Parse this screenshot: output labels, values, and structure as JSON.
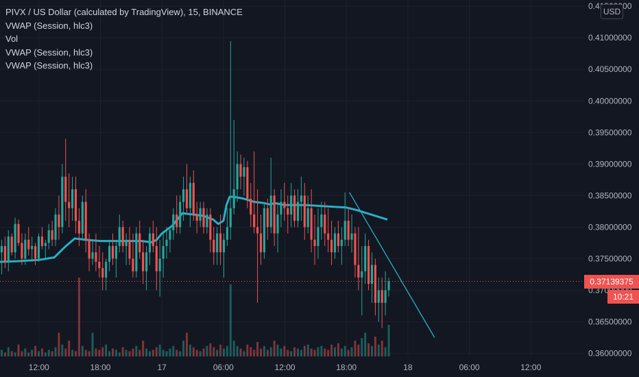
{
  "legend": {
    "title": "PIVX / US Dollar (calculated by TradingView), 15, BINANCE",
    "lines": [
      "VWAP (Session, hlc3)",
      "Vol",
      "VWAP (Session, hlc3)",
      "VWAP (Session, hlc3)"
    ]
  },
  "currency_button": "USD",
  "last_price": "0.37139375",
  "countdown": "10:21",
  "colors": {
    "background": "#131722",
    "up": "#26a69a",
    "down": "#ef5350",
    "vwap": "#2ab0c5",
    "trendline": "#2ab0c5",
    "text": "#b2b5be",
    "price_tag": "#ef5350"
  },
  "chart_data": {
    "type": "candlestick",
    "symbol": "PIVX / US Dollar (calculated by TradingView)",
    "interval": "15",
    "exchange": "BINANCE",
    "y_ticks": [
      "0.41500000",
      "0.41000000",
      "0.40500000",
      "0.40000000",
      "0.39500000",
      "0.39000000",
      "0.38500000",
      "0.38000000",
      "0.37500000",
      "0.37000000",
      "0.36500000",
      "0.36000000"
    ],
    "y_tick_values": [
      0.415,
      0.41,
      0.405,
      0.4,
      0.395,
      0.39,
      0.385,
      0.38,
      0.375,
      0.37,
      0.365,
      0.36
    ],
    "ylim": [
      0.3595,
      0.416
    ],
    "x_ticks": [
      "12:00",
      "18:00",
      "17",
      "06:00",
      "12:00",
      "18:00",
      "18",
      "06:00",
      "12:00"
    ],
    "x_tick_hours": [
      12,
      18,
      24,
      30,
      36,
      42,
      48,
      54,
      60
    ],
    "xlim_hours": [
      8.2,
      65.2
    ],
    "last_price": 0.37139375,
    "series": [
      {
        "name": "VWAP (Session, hlc3)",
        "type": "line",
        "x_hours": [
          8.2,
          10,
          12,
          13.5,
          14.5,
          15.5,
          16.5,
          18,
          20,
          22,
          23,
          23.5,
          24,
          25,
          26,
          27,
          28,
          29,
          29.5,
          30,
          30.3,
          30.6,
          31,
          32,
          33,
          34,
          34.5,
          35,
          36,
          38,
          40,
          42,
          43,
          44,
          45,
          46
        ],
        "values": [
          0.3745,
          0.3746,
          0.3748,
          0.3752,
          0.3768,
          0.3782,
          0.378,
          0.3778,
          0.3778,
          0.3778,
          0.3776,
          0.378,
          0.379,
          0.3802,
          0.3822,
          0.382,
          0.3818,
          0.3812,
          0.3805,
          0.381,
          0.3835,
          0.3848,
          0.3848,
          0.3845,
          0.384,
          0.3838,
          0.3836,
          0.3838,
          0.3835,
          0.3835,
          0.3833,
          0.3831,
          0.3827,
          0.3822,
          0.3817,
          0.3812
        ]
      },
      {
        "name": "trend line",
        "type": "line",
        "x_hours": [
          42.3,
          50.6
        ],
        "values": [
          0.3855,
          0.3625
        ]
      }
    ],
    "ohlc": [
      [
        0.376,
        0.378,
        0.3725,
        0.377
      ],
      [
        0.377,
        0.3785,
        0.3735,
        0.3745
      ],
      [
        0.3745,
        0.3795,
        0.373,
        0.3785
      ],
      [
        0.3785,
        0.379,
        0.3755,
        0.376
      ],
      [
        0.376,
        0.3815,
        0.375,
        0.3805
      ],
      [
        0.3805,
        0.3812,
        0.377,
        0.3775
      ],
      [
        0.3775,
        0.379,
        0.374,
        0.375
      ],
      [
        0.375,
        0.379,
        0.374,
        0.378
      ],
      [
        0.378,
        0.38,
        0.3755,
        0.3765
      ],
      [
        0.3765,
        0.3785,
        0.3745,
        0.377
      ],
      [
        0.377,
        0.3775,
        0.374,
        0.375
      ],
      [
        0.375,
        0.379,
        0.3745,
        0.3785
      ],
      [
        0.3785,
        0.38,
        0.3765,
        0.377
      ],
      [
        0.377,
        0.378,
        0.375,
        0.3775
      ],
      [
        0.3775,
        0.3805,
        0.3765,
        0.3795
      ],
      [
        0.3795,
        0.381,
        0.377,
        0.378
      ],
      [
        0.378,
        0.383,
        0.377,
        0.382
      ],
      [
        0.382,
        0.385,
        0.378,
        0.38
      ],
      [
        0.38,
        0.39,
        0.379,
        0.388
      ],
      [
        0.388,
        0.394,
        0.381,
        0.384
      ],
      [
        0.384,
        0.3885,
        0.38,
        0.383
      ],
      [
        0.383,
        0.388,
        0.381,
        0.386
      ],
      [
        0.386,
        0.388,
        0.379,
        0.381
      ],
      [
        0.381,
        0.383,
        0.377,
        0.379
      ],
      [
        0.379,
        0.385,
        0.378,
        0.384
      ],
      [
        0.384,
        0.386,
        0.376,
        0.378
      ],
      [
        0.378,
        0.379,
        0.373,
        0.375
      ],
      [
        0.375,
        0.378,
        0.374,
        0.376
      ],
      [
        0.376,
        0.379,
        0.373,
        0.3745
      ],
      [
        0.3745,
        0.377,
        0.372,
        0.3735
      ],
      [
        0.3735,
        0.376,
        0.37,
        0.372
      ],
      [
        0.372,
        0.375,
        0.37,
        0.3745
      ],
      [
        0.3745,
        0.378,
        0.373,
        0.377
      ],
      [
        0.377,
        0.379,
        0.374,
        0.375
      ],
      [
        0.375,
        0.378,
        0.372,
        0.377
      ],
      [
        0.377,
        0.382,
        0.376,
        0.38
      ],
      [
        0.38,
        0.381,
        0.376,
        0.377
      ],
      [
        0.377,
        0.379,
        0.374,
        0.378
      ],
      [
        0.378,
        0.38,
        0.374,
        0.375
      ],
      [
        0.375,
        0.379,
        0.372,
        0.373
      ],
      [
        0.373,
        0.38,
        0.372,
        0.379
      ],
      [
        0.379,
        0.381,
        0.375,
        0.376
      ],
      [
        0.376,
        0.378,
        0.371,
        0.373
      ],
      [
        0.373,
        0.377,
        0.37,
        0.376
      ],
      [
        0.376,
        0.38,
        0.374,
        0.379
      ],
      [
        0.379,
        0.381,
        0.376,
        0.377
      ],
      [
        0.377,
        0.38,
        0.37,
        0.373
      ],
      [
        0.373,
        0.378,
        0.369,
        0.375
      ],
      [
        0.375,
        0.379,
        0.372,
        0.377
      ],
      [
        0.377,
        0.38,
        0.375,
        0.378
      ],
      [
        0.378,
        0.38,
        0.376,
        0.3795
      ],
      [
        0.3795,
        0.383,
        0.378,
        0.382
      ],
      [
        0.382,
        0.385,
        0.379,
        0.38
      ],
      [
        0.38,
        0.385,
        0.379,
        0.384
      ],
      [
        0.384,
        0.388,
        0.381,
        0.386
      ],
      [
        0.386,
        0.39,
        0.382,
        0.383
      ],
      [
        0.383,
        0.388,
        0.38,
        0.387
      ],
      [
        0.387,
        0.389,
        0.381,
        0.382
      ],
      [
        0.382,
        0.384,
        0.379,
        0.381
      ],
      [
        0.381,
        0.384,
        0.38,
        0.383
      ],
      [
        0.383,
        0.384,
        0.379,
        0.38
      ],
      [
        0.38,
        0.383,
        0.379,
        0.382
      ],
      [
        0.382,
        0.383,
        0.376,
        0.378
      ],
      [
        0.378,
        0.38,
        0.374,
        0.376
      ],
      [
        0.376,
        0.38,
        0.374,
        0.379
      ],
      [
        0.379,
        0.382,
        0.374,
        0.376
      ],
      [
        0.376,
        0.379,
        0.372,
        0.378
      ],
      [
        0.378,
        0.383,
        0.377,
        0.38
      ],
      [
        0.38,
        0.4095,
        0.378,
        0.383
      ],
      [
        0.383,
        0.397,
        0.382,
        0.386
      ],
      [
        0.386,
        0.392,
        0.384,
        0.39
      ],
      [
        0.39,
        0.3915,
        0.386,
        0.388
      ],
      [
        0.388,
        0.391,
        0.385,
        0.3895
      ],
      [
        0.3895,
        0.3905,
        0.383,
        0.3845
      ],
      [
        0.3845,
        0.387,
        0.38,
        0.382
      ],
      [
        0.382,
        0.392,
        0.379,
        0.38
      ],
      [
        0.38,
        0.386,
        0.368,
        0.379
      ],
      [
        0.379,
        0.382,
        0.374,
        0.376
      ],
      [
        0.376,
        0.384,
        0.375,
        0.383
      ],
      [
        0.383,
        0.3845,
        0.378,
        0.38
      ],
      [
        0.38,
        0.391,
        0.379,
        0.385
      ],
      [
        0.385,
        0.386,
        0.377,
        0.379
      ],
      [
        0.379,
        0.384,
        0.376,
        0.382
      ],
      [
        0.382,
        0.386,
        0.38,
        0.384
      ],
      [
        0.384,
        0.387,
        0.381,
        0.383
      ],
      [
        0.383,
        0.385,
        0.379,
        0.382
      ],
      [
        0.382,
        0.387,
        0.38,
        0.385
      ],
      [
        0.385,
        0.386,
        0.38,
        0.381
      ],
      [
        0.381,
        0.386,
        0.38,
        0.384
      ],
      [
        0.384,
        0.388,
        0.381,
        0.385
      ],
      [
        0.385,
        0.387,
        0.378,
        0.38
      ],
      [
        0.38,
        0.385,
        0.379,
        0.383
      ],
      [
        0.383,
        0.386,
        0.376,
        0.378
      ],
      [
        0.378,
        0.382,
        0.374,
        0.377
      ],
      [
        0.377,
        0.383,
        0.375,
        0.38
      ],
      [
        0.38,
        0.384,
        0.378,
        0.382
      ],
      [
        0.382,
        0.384,
        0.377,
        0.379
      ],
      [
        0.379,
        0.383,
        0.376,
        0.378
      ],
      [
        0.378,
        0.381,
        0.374,
        0.376
      ],
      [
        0.376,
        0.38,
        0.375,
        0.379
      ],
      [
        0.379,
        0.381,
        0.376,
        0.377
      ],
      [
        0.377,
        0.38,
        0.374,
        0.378
      ],
      [
        0.378,
        0.3855,
        0.377,
        0.381
      ],
      [
        0.381,
        0.383,
        0.377,
        0.378
      ],
      [
        0.378,
        0.382,
        0.376,
        0.379
      ],
      [
        0.379,
        0.38,
        0.372,
        0.374
      ],
      [
        0.374,
        0.38,
        0.37,
        0.372
      ],
      [
        0.372,
        0.377,
        0.366,
        0.373
      ],
      [
        0.373,
        0.379,
        0.371,
        0.377
      ],
      [
        0.377,
        0.378,
        0.37,
        0.371
      ],
      [
        0.371,
        0.376,
        0.368,
        0.374
      ],
      [
        0.374,
        0.375,
        0.366,
        0.368
      ],
      [
        0.368,
        0.372,
        0.365,
        0.37
      ],
      [
        0.37,
        0.372,
        0.364,
        0.368
      ],
      [
        0.368,
        0.373,
        0.366,
        0.37
      ],
      [
        0.37,
        0.372,
        0.369,
        0.3714
      ]
    ],
    "volume": [
      5,
      3,
      7,
      4,
      3,
      9,
      4,
      6,
      3,
      5,
      8,
      4,
      6,
      3,
      5,
      4,
      7,
      18,
      9,
      6,
      12,
      5,
      4,
      60,
      8,
      5,
      4,
      18,
      6,
      5,
      7,
      9,
      4,
      6,
      5,
      3,
      7,
      5,
      4,
      6,
      8,
      5,
      12,
      6,
      4,
      5,
      7,
      9,
      5,
      4,
      6,
      8,
      5,
      4,
      12,
      18,
      9,
      7,
      5,
      4,
      6,
      8,
      10,
      7,
      5,
      9,
      6,
      8,
      55,
      12,
      8,
      6,
      4,
      9,
      7,
      5,
      11,
      6,
      8,
      5,
      7,
      12,
      9,
      6,
      8,
      5,
      4,
      7,
      6,
      5,
      8,
      9,
      6,
      5,
      7,
      8,
      6,
      5,
      9,
      7,
      10,
      6,
      8,
      5,
      7,
      12,
      9,
      14,
      18,
      10,
      8,
      15,
      9,
      12,
      7,
      24
    ]
  }
}
